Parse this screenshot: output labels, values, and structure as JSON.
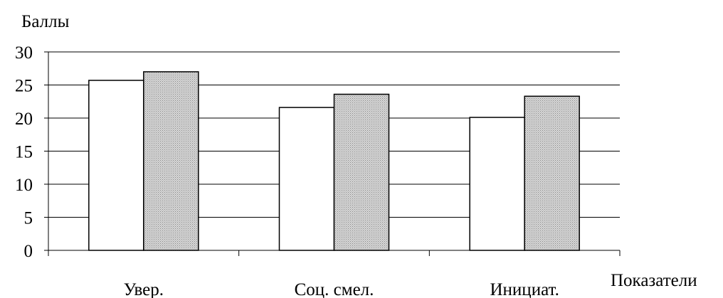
{
  "chart_data": {
    "type": "bar",
    "title": "",
    "ylabel": "Баллы",
    "xlabel": "Показатели",
    "ylim": [
      0,
      30
    ],
    "yticks": [
      0,
      5,
      10,
      15,
      20,
      25,
      30
    ],
    "grid": true,
    "legend": "none",
    "categories": [
      "Увер.",
      "Соц. смел.",
      "Инициат."
    ],
    "series": [
      {
        "values": [
          25.7,
          21.6,
          20.1
        ],
        "color": "#ffffff"
      },
      {
        "values": [
          27.0,
          23.6,
          23.3
        ],
        "color": "#c8c8c8"
      }
    ]
  }
}
